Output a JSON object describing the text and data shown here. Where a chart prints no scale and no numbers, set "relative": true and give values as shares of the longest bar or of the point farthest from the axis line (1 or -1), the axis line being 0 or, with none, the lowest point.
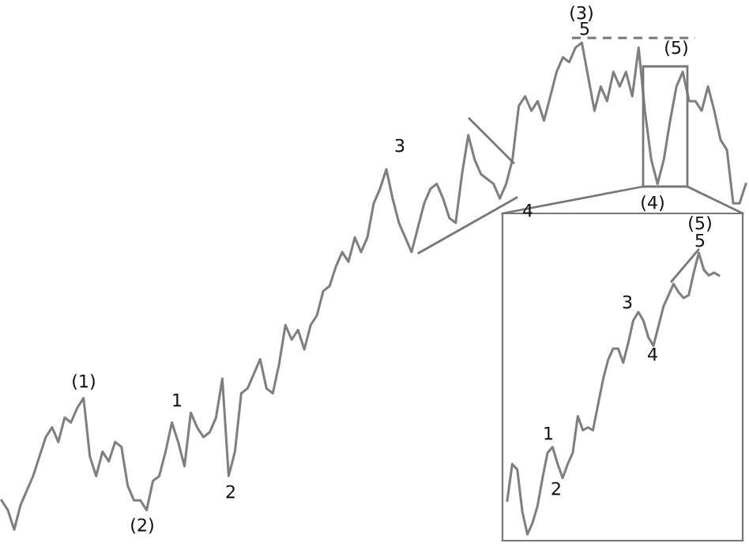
{
  "chart_data": [
    {
      "type": "line",
      "relative": true,
      "categories": [
        null,
        null,
        null,
        null,
        null,
        null,
        null,
        null,
        null,
        null,
        null,
        null,
        null,
        null,
        null,
        null,
        null,
        null,
        null,
        null,
        null,
        null,
        null,
        null,
        null,
        null,
        null,
        null,
        null,
        null,
        null,
        null,
        null,
        null,
        null,
        null,
        null,
        null,
        null,
        null,
        null,
        null,
        null,
        null,
        null,
        null,
        null,
        null,
        null,
        null,
        null,
        null,
        null,
        null,
        null,
        null,
        null,
        null,
        null,
        null,
        null,
        null,
        null,
        null,
        null,
        null,
        null,
        null,
        null,
        null,
        null,
        null,
        null,
        null,
        null,
        null,
        null,
        null,
        null,
        null,
        null,
        null,
        null,
        null,
        null,
        null,
        null,
        null,
        null,
        null,
        null,
        null,
        null,
        null,
        null,
        null,
        null,
        null,
        null,
        null,
        null,
        null,
        null,
        null,
        null,
        null,
        null,
        null,
        null,
        null,
        null,
        null,
        null,
        null,
        null,
        null,
        null,
        null,
        null
      ],
      "series": [
        {
          "color": "#7f7f7f",
          "values": [
            0.06,
            0.04,
            0,
            0.05,
            0.08,
            0.11,
            0.15,
            0.19,
            0.21,
            0.18,
            0.23,
            0.22,
            0.25,
            0.27,
            0.15,
            0.11,
            0.16,
            0.14,
            0.18,
            0.17,
            0.09,
            0.06,
            0.06,
            0.04,
            0.1,
            0.11,
            0.16,
            0.22,
            0.18,
            0.13,
            0.24,
            0.21,
            0.19,
            0.2,
            0.23,
            0.31,
            0.11,
            0.16,
            0.28,
            0.29,
            0.32,
            0.35,
            0.29,
            0.28,
            0.34,
            0.42,
            0.39,
            0.41,
            0.37,
            0.42,
            0.44,
            0.49,
            0.5,
            0.54,
            0.57,
            0.55,
            0.6,
            0.57,
            0.6,
            0.67,
            0.7,
            0.74,
            0.68,
            0.63,
            0.6,
            0.57,
            0.62,
            0.67,
            0.7,
            0.71,
            0.68,
            0.64,
            0.63,
            0.73,
            0.81,
            0.76,
            0.73,
            0.72,
            0.71,
            0.68,
            0.71,
            0.76,
            0.87,
            0.89,
            0.86,
            0.88,
            0.84,
            0.89,
            0.94,
            0.97,
            0.96,
            0.99,
            1,
            0.93,
            0.86,
            0.91,
            0.88,
            0.94,
            0.91,
            0.94,
            0.89,
            0.99,
            0.86,
            0.76,
            0.71,
            0.76,
            0.84,
            0.91,
            0.94,
            0.88,
            0.88,
            0.86,
            0.91,
            0.86,
            0.8,
            0.78,
            0.67,
            0.67,
            0.71
          ]
        }
      ],
      "annotations": [
        "(1)",
        "(2)",
        "1",
        "2",
        "3",
        "4",
        "(3)",
        "5",
        "(4)",
        "(5)"
      ]
    },
    {
      "type": "line",
      "relative": true,
      "categories": [
        null,
        null,
        null,
        null,
        null,
        null,
        null,
        null,
        null,
        null,
        null,
        null,
        null,
        null,
        null,
        null,
        null,
        null,
        null,
        null,
        null,
        null,
        null,
        null,
        null,
        null,
        null,
        null,
        null,
        null,
        null,
        null,
        null,
        null,
        null,
        null,
        null,
        null,
        null,
        null,
        null,
        null,
        null
      ],
      "series": [
        {
          "color": "#7f7f7f",
          "values": [
            0.12,
            0.25,
            0.23,
            0.08,
            0,
            0.04,
            0.1,
            0.2,
            0.29,
            0.31,
            0.25,
            0.2,
            0.25,
            0.29,
            0.42,
            0.37,
            0.38,
            0.37,
            0.46,
            0.55,
            0.62,
            0.66,
            0.66,
            0.61,
            0.68,
            0.76,
            0.79,
            0.76,
            0.7,
            0.67,
            0.74,
            0.81,
            0.85,
            0.89,
            0.86,
            0.84,
            0.85,
            0.93,
            1,
            0.94,
            0.92,
            0.93,
            0.92
          ]
        }
      ],
      "annotations": [
        "1",
        "2",
        "3",
        "4",
        "5",
        "(5)"
      ]
    }
  ]
}
